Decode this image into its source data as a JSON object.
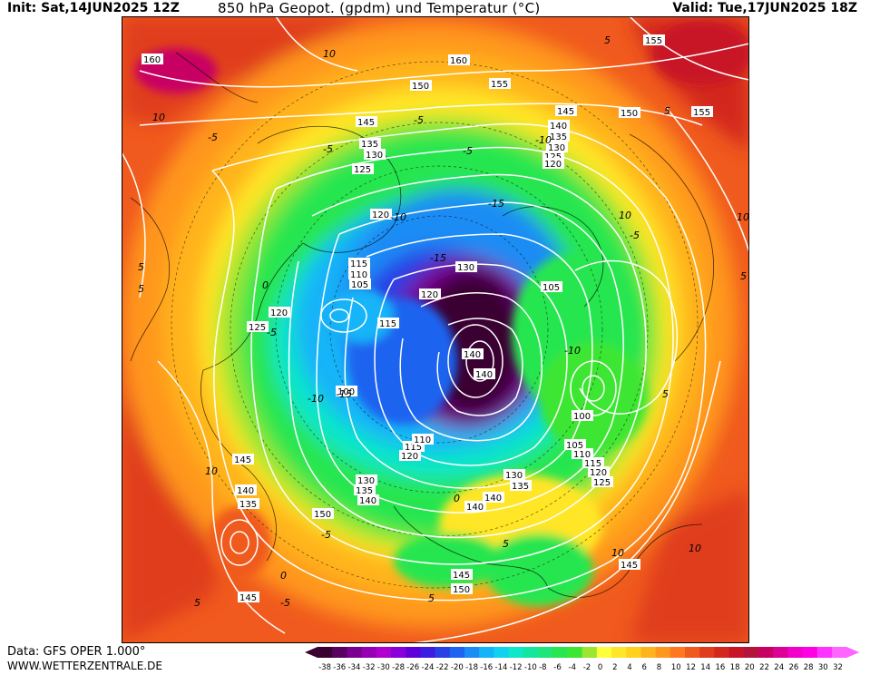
{
  "header": {
    "init": "Init: Sat,14JUN2025 12Z",
    "title": "850 hPa Geopot. (gpdm) und Temperatur (°C)",
    "valid": "Valid: Tue,17JUN2025 18Z"
  },
  "footer": {
    "data_source": "Data: GFS OPER 1.000°",
    "website": "WWW.WETTERZENTRALE.DE"
  },
  "colorbar": {
    "labels": [
      "-38",
      "-36",
      "-34",
      "-32",
      "-30",
      "-28",
      "-26",
      "-24",
      "-22",
      "-20",
      "-18",
      "-16",
      "-14",
      "-12",
      "-10",
      "-8",
      "-6",
      "-4",
      "-2",
      "0",
      "2",
      "4",
      "6",
      "8",
      "10",
      "12",
      "14",
      "16",
      "18",
      "20",
      "22",
      "24",
      "26",
      "28",
      "30",
      "32"
    ],
    "colors": [
      "#3a0030",
      "#5a0060",
      "#7a0090",
      "#9600b4",
      "#b000d0",
      "#8a00d8",
      "#6000d8",
      "#3c1ee0",
      "#2840e6",
      "#1e64f0",
      "#1a8cf5",
      "#14b4f8",
      "#10d2f0",
      "#10e6c8",
      "#14e6a0",
      "#1ee678",
      "#28e650",
      "#3ce632",
      "#9ae632",
      "#ffff3c",
      "#ffe628",
      "#ffd21e",
      "#ffb41e",
      "#ff961e",
      "#ff781e",
      "#f05a1e",
      "#e03c1e",
      "#d2281e",
      "#c81428",
      "#b4143c",
      "#c80064",
      "#dc0096",
      "#f000c8",
      "#ff00e6",
      "#ff32ff",
      "#ff64ff"
    ]
  },
  "map_data": {
    "geopotential_labels_gpdm": [
      {
        "text": "160"
      },
      {
        "text": "155"
      },
      {
        "text": "150"
      },
      {
        "text": "145"
      },
      {
        "text": "140"
      },
      {
        "text": "135"
      },
      {
        "text": "130"
      },
      {
        "text": "125"
      },
      {
        "text": "120"
      },
      {
        "text": "115"
      },
      {
        "text": "110"
      },
      {
        "text": "105"
      },
      {
        "text": "100"
      }
    ],
    "temperature_labels_c": [
      "-15",
      "-10",
      "-5",
      "0",
      "5",
      "10"
    ]
  }
}
